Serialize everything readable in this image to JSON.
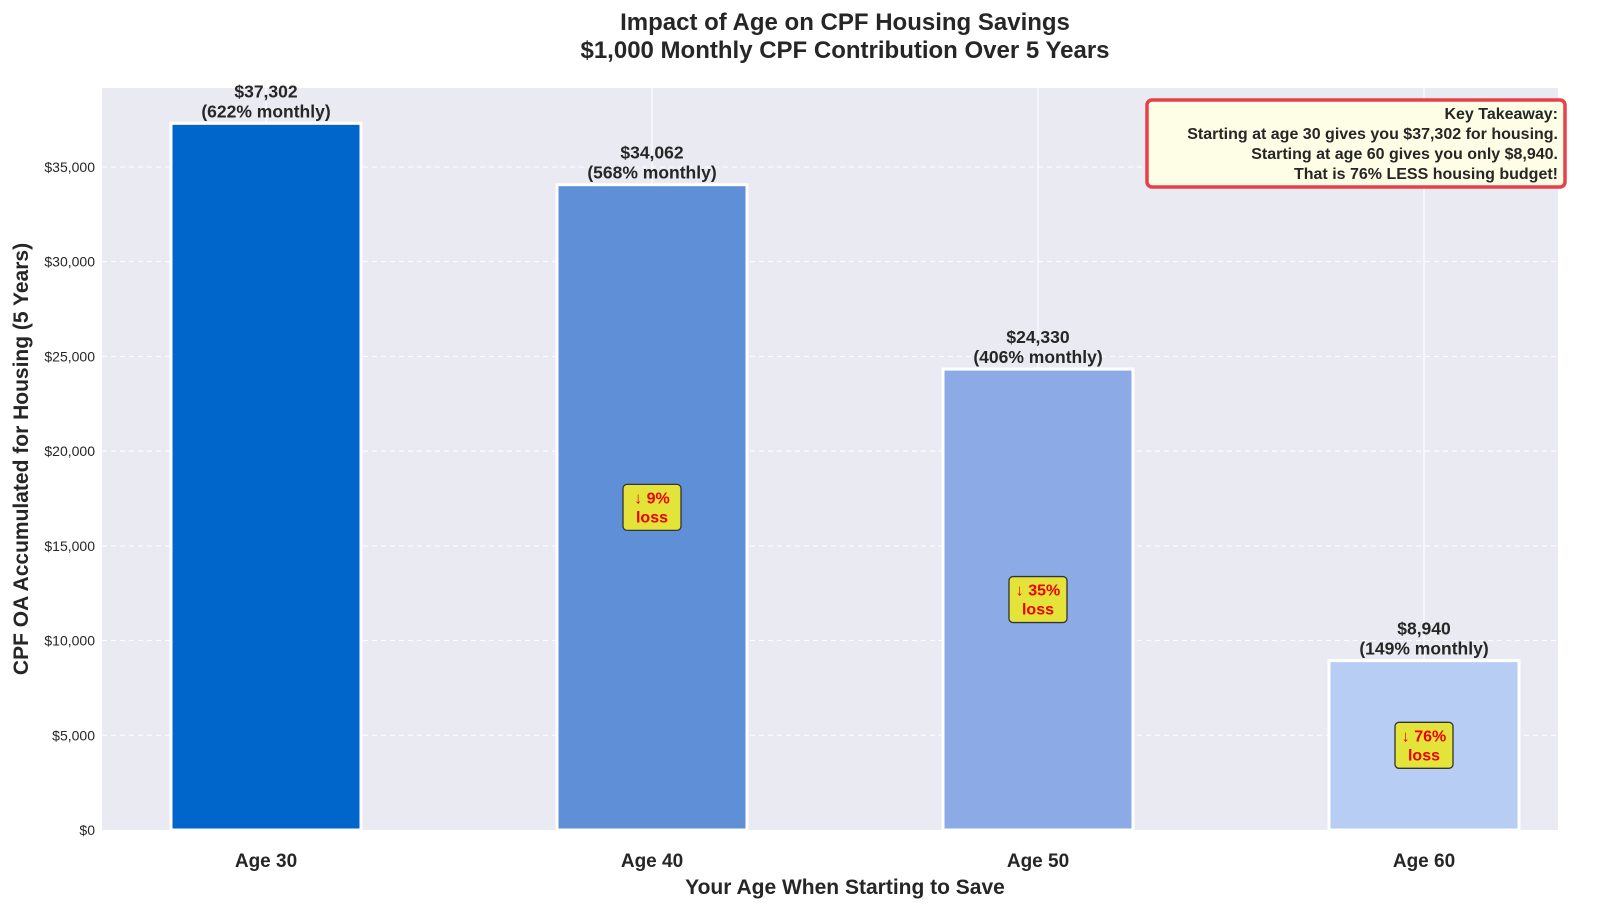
{
  "chart_data": {
    "type": "bar",
    "title": [
      "Impact of Age on CPF Housing Savings",
      "$1,000 Monthly CPF Contribution Over 5 Years"
    ],
    "xlabel": "Your Age When Starting to Save",
    "ylabel": "CPF OA Accumulated for Housing (5 Years)",
    "categories": [
      "Age 30",
      "Age 40",
      "Age 50",
      "Age 60"
    ],
    "values": [
      37302,
      34062,
      24330,
      8940
    ],
    "value_labels": [
      "$37,302",
      "$34,062",
      "$24,330",
      "$8,940"
    ],
    "secondary_labels": [
      "(622% monthly)",
      "(568% monthly)",
      "(406% monthly)",
      "(149% monthly)"
    ],
    "loss_badges": [
      null,
      [
        "↓ 9%",
        "loss"
      ],
      [
        "↓ 35%",
        "loss"
      ],
      [
        "↓ 76%",
        "loss"
      ]
    ],
    "bar_colors": [
      "#0066cc",
      "#5f8fd7",
      "#8cabe6",
      "#b8cdf4"
    ],
    "ylim": [
      0,
      39167
    ],
    "yticks": [
      0,
      5000,
      10000,
      15000,
      20000,
      25000,
      30000,
      35000
    ],
    "ytick_labels": [
      "$0",
      "$5,000",
      "$10,000",
      "$15,000",
      "$20,000",
      "$25,000",
      "$30,000",
      "$35,000"
    ],
    "grid": true,
    "annotation": {
      "lines": [
        "Key Takeaway:",
        "Starting at age 30 gives you $37,302 for housing.",
        "Starting at age 60 gives you only $8,940.",
        "That is 76% LESS housing budget!"
      ],
      "placement": "top-right",
      "border_color": "#e8404a",
      "background": "#fefee6"
    },
    "background": "#eaeaf2"
  }
}
